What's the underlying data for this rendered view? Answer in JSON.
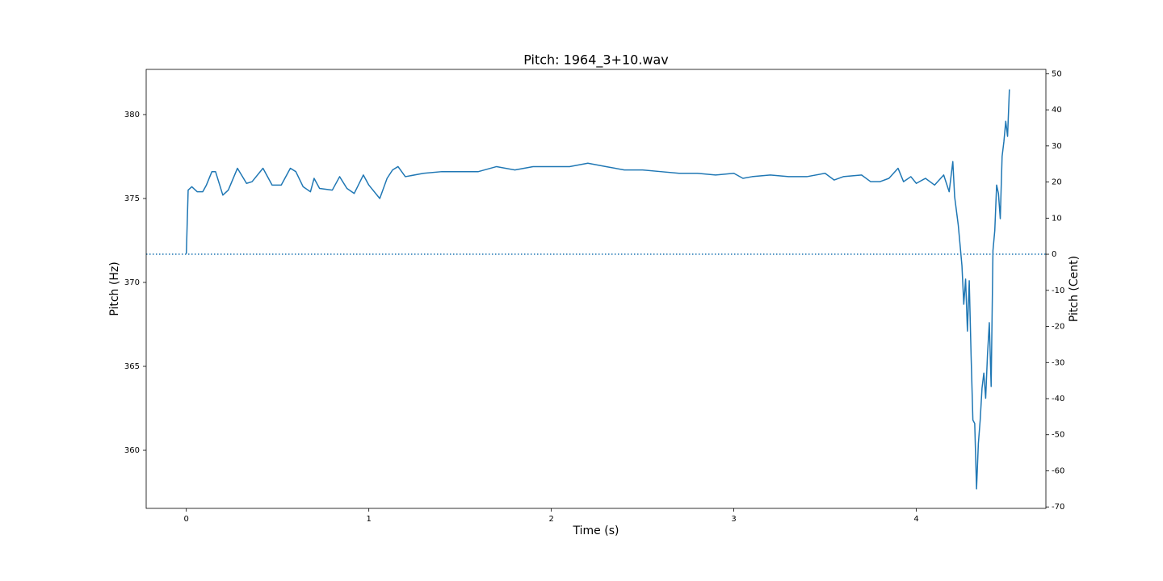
{
  "chart_data": {
    "type": "line",
    "title": "Pitch: 1964_3+10.wav",
    "x_label": "Time (s)",
    "y_label": "Pitch (Hz)",
    "y2_label": "Pitch (Cent)",
    "color": "#1f77b4",
    "x": [
      0,
      0.01,
      0.03,
      0.06,
      0.09,
      0.11,
      0.14,
      0.16,
      0.2,
      0.23,
      0.28,
      0.33,
      0.36,
      0.42,
      0.47,
      0.52,
      0.57,
      0.6,
      0.64,
      0.68,
      0.7,
      0.73,
      0.8,
      0.84,
      0.88,
      0.92,
      0.97,
      1.0,
      1.06,
      1.1,
      1.13,
      1.16,
      1.2,
      1.3,
      1.4,
      1.5,
      1.6,
      1.7,
      1.8,
      1.9,
      2.0,
      2.1,
      2.2,
      2.3,
      2.4,
      2.5,
      2.6,
      2.7,
      2.8,
      2.9,
      3.0,
      3.05,
      3.1,
      3.2,
      3.3,
      3.4,
      3.5,
      3.55,
      3.6,
      3.7,
      3.75,
      3.8,
      3.85,
      3.9,
      3.93,
      3.97,
      4.0,
      4.05,
      4.1,
      4.15,
      4.18,
      4.2,
      4.21,
      4.23,
      4.25,
      4.26,
      4.27,
      4.28,
      4.29,
      4.3,
      4.31,
      4.32,
      4.33,
      4.34,
      4.35,
      4.36,
      4.37,
      4.38,
      4.39,
      4.4,
      4.41,
      4.42,
      4.43,
      4.44,
      4.45,
      4.46,
      4.47,
      4.48,
      4.49,
      4.5,
      4.51
    ],
    "values": [
      371.7,
      375.5,
      375.7,
      375.4,
      375.4,
      375.8,
      376.6,
      376.6,
      375.2,
      375.5,
      376.8,
      375.9,
      376.0,
      376.8,
      375.8,
      375.8,
      376.8,
      376.6,
      375.7,
      375.4,
      376.2,
      375.6,
      375.5,
      376.3,
      375.6,
      375.3,
      376.4,
      375.8,
      375.0,
      376.2,
      376.7,
      376.9,
      376.3,
      376.5,
      376.6,
      376.6,
      376.6,
      376.9,
      376.7,
      376.9,
      376.9,
      376.9,
      377.1,
      376.9,
      376.7,
      376.7,
      376.6,
      376.5,
      376.5,
      376.4,
      376.5,
      376.2,
      376.3,
      376.4,
      376.3,
      376.3,
      376.5,
      376.1,
      376.3,
      376.4,
      376.0,
      376.0,
      376.2,
      376.8,
      376.0,
      376.3,
      375.9,
      376.2,
      375.8,
      376.4,
      375.4,
      377.2,
      375.1,
      373.4,
      371.0,
      368.7,
      370.2,
      367.1,
      370.1,
      365.7,
      361.8,
      361.6,
      357.7,
      360.4,
      361.8,
      363.7,
      364.6,
      363.1,
      365.7,
      367.6,
      363.8,
      371.9,
      373.1,
      375.8,
      375.3,
      373.8,
      377.5,
      378.4,
      379.6,
      378.7,
      381.5
    ],
    "xlim": [
      -0.22,
      4.71
    ],
    "xticks": [
      0,
      1,
      2,
      3,
      4
    ],
    "ylim": [
      356.54,
      382.69
    ],
    "yticks": [
      360,
      365,
      370,
      375,
      380
    ],
    "y2lim": [
      -70.4,
      51.2
    ],
    "y2ticks": [
      -70,
      -60,
      -50,
      -40,
      -30,
      -20,
      -10,
      0,
      10,
      20,
      30,
      40,
      50
    ],
    "y2_reference_line": 0
  }
}
